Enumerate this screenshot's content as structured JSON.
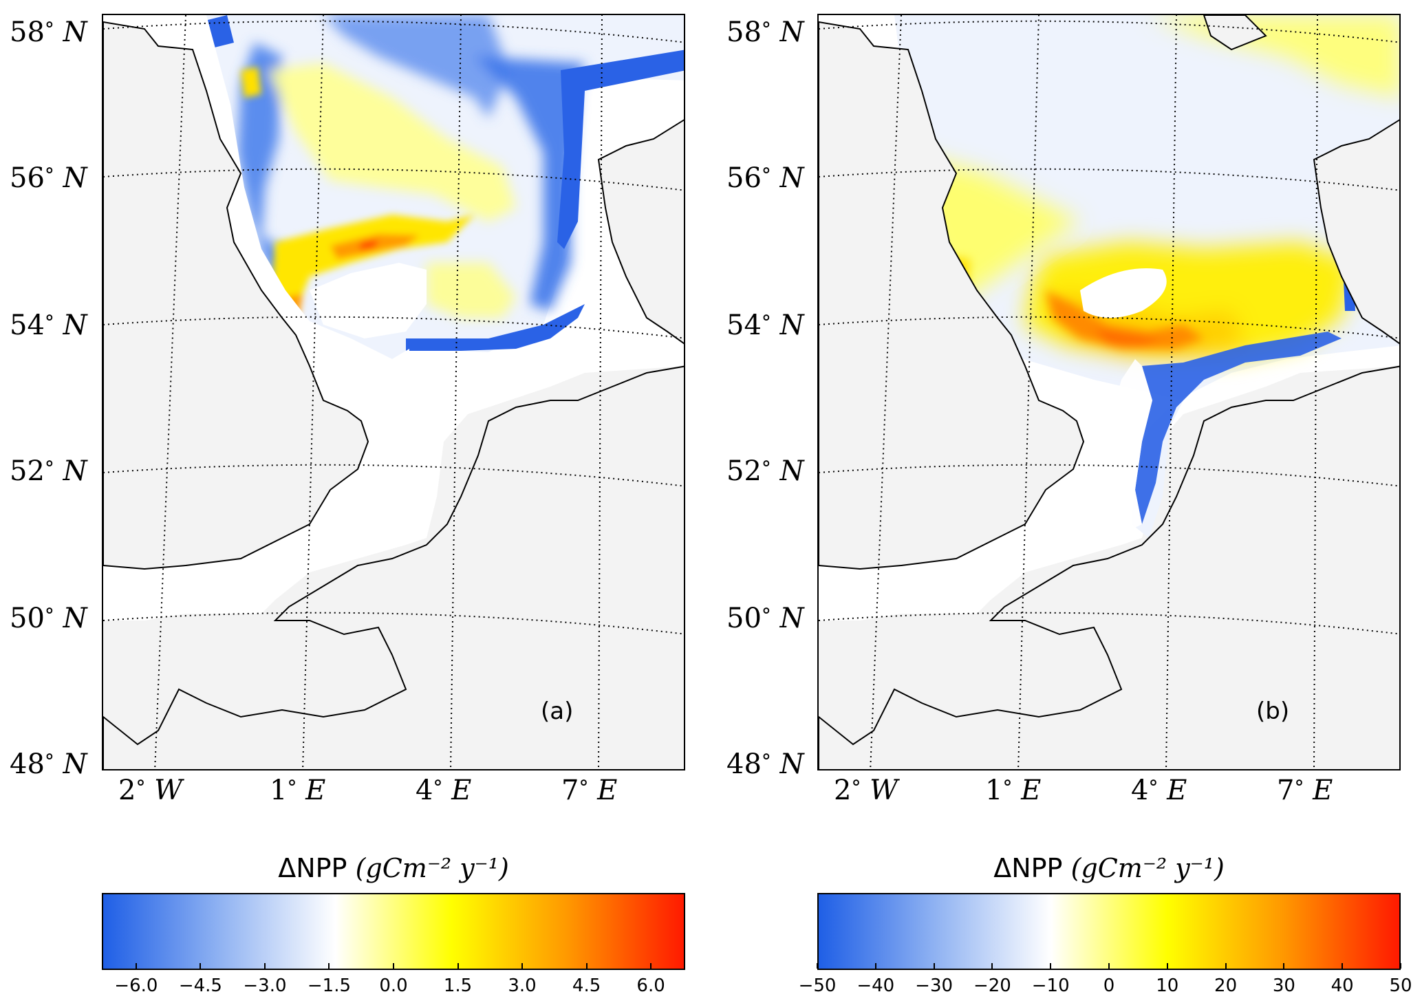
{
  "panels": [
    {
      "label": "(a)",
      "colorbar": {
        "title_symbol": "ΔNPP",
        "title_unit": "(gCm⁻² y⁻¹)",
        "range": [
          -6.8,
          6.8
        ],
        "ticks": [
          "−6.0",
          "−4.5",
          "−3.0",
          "−1.5",
          "0.0",
          "1.5",
          "3.0",
          "4.5",
          "6.0"
        ],
        "tick_values": [
          -6.0,
          -4.5,
          -3.0,
          -1.5,
          0.0,
          1.5,
          3.0,
          4.5,
          6.0
        ],
        "colors": [
          "#1f5fe6",
          "#8fb2f2",
          "#ffffff",
          "#ffff00",
          "#ff9800",
          "#ff1a00"
        ]
      }
    },
    {
      "label": "(b)",
      "colorbar": {
        "title_symbol": "ΔNPP",
        "title_unit": "(gCm⁻² y⁻¹)",
        "range": [
          -50,
          50
        ],
        "ticks": [
          "−50",
          "−40",
          "−30",
          "−20",
          "−10",
          "0",
          "10",
          "20",
          "30",
          "40",
          "50"
        ],
        "tick_values": [
          -50,
          -40,
          -30,
          -20,
          -10,
          0,
          10,
          20,
          30,
          40,
          50
        ],
        "colors": [
          "#1f5fe6",
          "#8fb2f2",
          "#ffffff",
          "#ffff00",
          "#ff9800",
          "#ff1a00"
        ]
      }
    }
  ],
  "lat_labels": [
    {
      "deg": "58",
      "hem": "N"
    },
    {
      "deg": "56",
      "hem": "N"
    },
    {
      "deg": "54",
      "hem": "N"
    },
    {
      "deg": "52",
      "hem": "N"
    },
    {
      "deg": "50",
      "hem": "N"
    },
    {
      "deg": "48",
      "hem": "N"
    }
  ],
  "lon_labels": [
    {
      "deg": "2",
      "hem": "W"
    },
    {
      "deg": "1",
      "hem": "E"
    },
    {
      "deg": "4",
      "hem": "E"
    },
    {
      "deg": "7",
      "hem": "E"
    }
  ],
  "colors": {
    "land": "#f3f3f3",
    "sea": "#ffffff",
    "negative": "#2a68e8",
    "positive": "#ffee00",
    "peak": "#ff5a00"
  }
}
